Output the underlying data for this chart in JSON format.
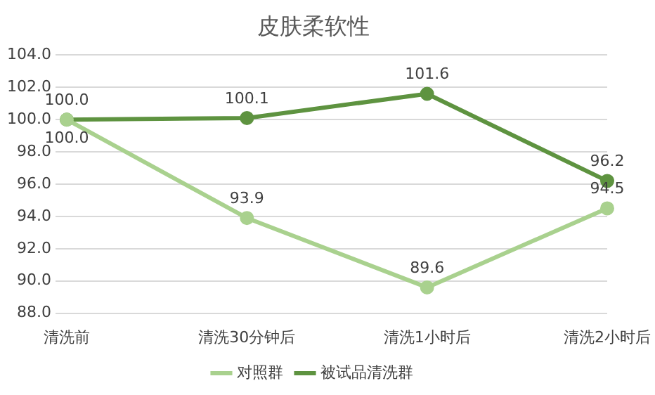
{
  "chart_data": {
    "type": "line",
    "title": "皮肤柔软性",
    "categories": [
      "清洗前",
      "清洗30分钟后",
      "清洗1小时后",
      "清洗2小时后"
    ],
    "series": [
      {
        "name": "对照群",
        "color": "#a9d18e",
        "values": [
          100.0,
          93.9,
          89.6,
          94.5
        ],
        "value_labels": [
          "100.0",
          "93.9",
          "89.6",
          "94.5"
        ]
      },
      {
        "name": "被试品清洗群",
        "color": "#5e9340",
        "values": [
          100.0,
          100.1,
          101.6,
          96.2
        ],
        "value_labels": [
          "100.0",
          "100.1",
          "101.6",
          "96.2"
        ]
      }
    ],
    "ylim": [
      88,
      104
    ],
    "yticks": [
      {
        "value": 88,
        "label": "88.0"
      },
      {
        "value": 90,
        "label": "90.0"
      },
      {
        "value": 92,
        "label": "92.0"
      },
      {
        "value": 94,
        "label": "94.0"
      },
      {
        "value": 96,
        "label": "96.0"
      },
      {
        "value": 98,
        "label": "98.0"
      },
      {
        "value": 100,
        "label": "100.0"
      },
      {
        "value": 102,
        "label": "102.0"
      },
      {
        "value": 104,
        "label": "104.0"
      }
    ],
    "grid": "y",
    "legend": "bottom",
    "marker": "circle",
    "line_style": "solid"
  }
}
